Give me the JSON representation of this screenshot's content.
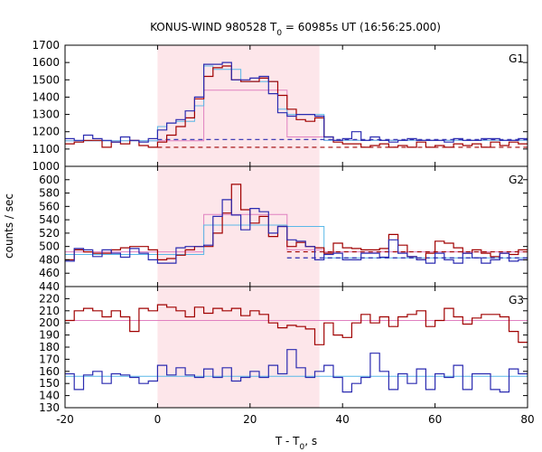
{
  "chart_data": {
    "type": "line",
    "title": "KONUS-WIND 980528 T",
    "title_sub": "0",
    "title_tail": " = 60985s UT (16:56:25.000)",
    "xlabel": "T - T",
    "xlabel_sub": "0",
    "xlabel_tail": ", s",
    "ylabel": "counts / sec",
    "xlim": [
      -20,
      80
    ],
    "x_ticks": [
      -20,
      0,
      20,
      40,
      60,
      80
    ],
    "shaded_interval": [
      0,
      35
    ],
    "grid": false,
    "colors": {
      "red": "#a00000",
      "blue": "#2a2ab0",
      "pink": "#e080c0",
      "cyan": "#5ab8e8",
      "shade": "#fde6ea"
    },
    "panels": [
      {
        "label": "G1",
        "ylim": [
          1000,
          1700
        ],
        "y_ticks": [
          1000,
          1100,
          1200,
          1300,
          1400,
          1500,
          1600,
          1700
        ],
        "bin_edges": [
          -20,
          -18,
          -16,
          -14,
          -12,
          -10,
          -8,
          -6,
          -4,
          -2,
          0,
          2,
          4,
          6,
          8,
          10,
          12,
          14,
          16,
          18,
          20,
          22,
          24,
          26,
          28,
          30,
          32,
          34,
          36,
          38,
          40,
          42,
          44,
          46,
          48,
          50,
          52,
          54,
          56,
          58,
          60,
          62,
          64,
          66,
          68,
          70,
          72,
          74,
          76,
          78,
          80
        ],
        "series": [
          {
            "color": "red",
            "dashed_level": 1110,
            "dashed_from": 0,
            "values": [
              1130,
              1140,
              1150,
              1150,
              1110,
              1140,
              1130,
              1150,
              1120,
              1110,
              1140,
              1180,
              1230,
              1280,
              1390,
              1520,
              1570,
              1580,
              1500,
              1490,
              1490,
              1510,
              1490,
              1410,
              1330,
              1270,
              1260,
              1280,
              1170,
              1140,
              1130,
              1130,
              1110,
              1120,
              1130,
              1110,
              1120,
              1110,
              1140,
              1110,
              1120,
              1110,
              1130,
              1120,
              1130,
              1110,
              1140,
              1120,
              1140,
              1130
            ]
          },
          {
            "color": "blue",
            "dashed_level": 1155,
            "dashed_from": 0,
            "values": [
              1160,
              1150,
              1180,
              1160,
              1150,
              1140,
              1170,
              1150,
              1140,
              1160,
              1210,
              1250,
              1270,
              1320,
              1400,
              1590,
              1590,
              1600,
              1500,
              1500,
              1510,
              1520,
              1420,
              1310,
              1290,
              1300,
              1300,
              1290,
              1170,
              1150,
              1160,
              1200,
              1150,
              1170,
              1150,
              1140,
              1150,
              1160,
              1150,
              1150,
              1150,
              1140,
              1160,
              1150,
              1150,
              1160,
              1160,
              1150,
              1150,
              1160
            ]
          }
        ],
        "model_steps": [
          {
            "color": "pink",
            "edges": [
              -20,
              0,
              10,
              26,
              28,
              36,
              80
            ],
            "values": [
              1148,
              1148,
              1440,
              1440,
              1170,
              1150
            ]
          },
          {
            "color": "cyan",
            "edges": [
              -20,
              0,
              2,
              4,
              8,
              10,
              12,
              18,
              26,
              28,
              36,
              80
            ],
            "values": [
              1148,
              1230,
              1250,
              1260,
              1350,
              1580,
              1560,
              1490,
              1330,
              1300,
              1150
            ]
          }
        ]
      },
      {
        "label": "G2",
        "ylim": [
          440,
          620
        ],
        "y_ticks": [
          440,
          460,
          480,
          500,
          520,
          540,
          560,
          580,
          600
        ],
        "bin_edges": [
          -20,
          -18,
          -16,
          -14,
          -12,
          -10,
          -8,
          -6,
          -4,
          -2,
          0,
          2,
          4,
          6,
          8,
          10,
          12,
          14,
          16,
          18,
          20,
          22,
          24,
          26,
          28,
          30,
          32,
          34,
          36,
          38,
          40,
          42,
          44,
          46,
          48,
          50,
          52,
          54,
          56,
          58,
          60,
          62,
          64,
          66,
          68,
          70,
          72,
          74,
          76,
          78,
          80
        ],
        "series": [
          {
            "color": "red",
            "dashed_level": 492,
            "dashed_from": 28,
            "values": [
              480,
              495,
              492,
              490,
              490,
              495,
              498,
              500,
              500,
              495,
              480,
              482,
              487,
              495,
              500,
              500,
              520,
              550,
              593,
              555,
              535,
              545,
              515,
              530,
              500,
              506,
              500,
              498,
              490,
              505,
              498,
              497,
              495,
              495,
              497,
              518,
              502,
              485,
              480,
              490,
              508,
              505,
              498,
              490,
              495,
              490,
              485,
              490,
              488,
              495
            ]
          },
          {
            "color": "blue",
            "dashed_level": 483,
            "dashed_from": 28,
            "values": [
              478,
              497,
              495,
              485,
              495,
              490,
              484,
              497,
              490,
              480,
              475,
              475,
              498,
              500,
              500,
              502,
              545,
              570,
              547,
              525,
              557,
              552,
              520,
              530,
              510,
              508,
              500,
              480,
              488,
              490,
              480,
              480,
              490,
              490,
              484,
              510,
              490,
              485,
              480,
              475,
              490,
              480,
              475,
              490,
              483,
              475,
              480,
              490,
              478,
              480
            ]
          }
        ],
        "model_steps": [
          {
            "color": "pink",
            "edges": [
              -20,
              0,
              10,
              28,
              36,
              80
            ],
            "values": [
              492,
              492,
              548,
              495,
              492
            ]
          },
          {
            "color": "cyan",
            "edges": [
              -20,
              0,
              10,
              18,
              28,
              36,
              80
            ],
            "values": [
              488,
              488,
              532,
              532,
              530,
              483
            ]
          }
        ]
      },
      {
        "label": "G3",
        "ylim": [
          130,
          230
        ],
        "y_ticks": [
          130,
          140,
          150,
          160,
          170,
          180,
          190,
          200,
          210,
          220
        ],
        "bin_edges": [
          -20,
          -18,
          -16,
          -14,
          -12,
          -10,
          -8,
          -6,
          -4,
          -2,
          0,
          2,
          4,
          6,
          8,
          10,
          12,
          14,
          16,
          18,
          20,
          22,
          24,
          26,
          28,
          30,
          32,
          34,
          36,
          38,
          40,
          42,
          44,
          46,
          48,
          50,
          52,
          54,
          56,
          58,
          60,
          62,
          64,
          66,
          68,
          70,
          72,
          74,
          76,
          78,
          80
        ],
        "series": [
          {
            "color": "red",
            "values": [
              202,
              210,
              212,
              210,
              205,
              210,
              205,
              193,
              212,
              210,
              215,
              213,
              210,
              205,
              213,
              208,
              212,
              210,
              212,
              206,
              210,
              207,
              200,
              196,
              198,
              197,
              195,
              182,
              200,
              190,
              188,
              200,
              207,
              200,
              205,
              197,
              205,
              207,
              210,
              197,
              202,
              212,
              205,
              199,
              204,
              207,
              207,
              205,
              193,
              184
            ]
          },
          {
            "color": "blue",
            "values": [
              158,
              145,
              157,
              160,
              150,
              158,
              157,
              155,
              150,
              152,
              165,
              157,
              163,
              157,
              155,
              162,
              155,
              163,
              152,
              155,
              160,
              155,
              165,
              158,
              178,
              163,
              155,
              160,
              165,
              155,
              143,
              150,
              155,
              175,
              160,
              145,
              158,
              150,
              162,
              145,
              158,
              155,
              165,
              145,
              158,
              158,
              145,
              143,
              162,
              158
            ]
          }
        ],
        "model_steps": [
          {
            "color": "pink",
            "edges": [
              -20,
              80
            ],
            "values": [
              202
            ]
          },
          {
            "color": "cyan",
            "edges": [
              -20,
              80
            ],
            "values": [
              156
            ]
          }
        ]
      }
    ]
  }
}
